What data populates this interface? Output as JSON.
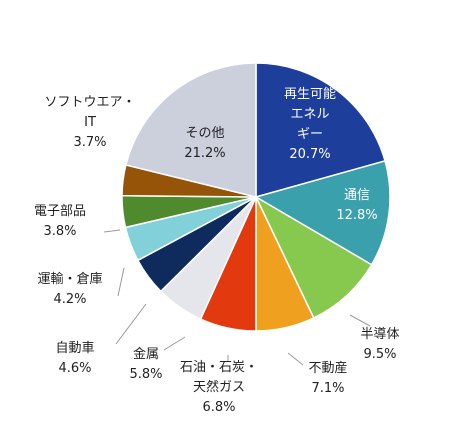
{
  "chart_data": {
    "type": "pie",
    "title": "",
    "start": "12 o'clock",
    "direction": "clockwise",
    "slices": [
      {
        "label": [
          "再生可能",
          "エネル",
          "ギー"
        ],
        "value": 20.7,
        "text": "20.7%",
        "color": "#1e3e9c",
        "label_style": "inside-light"
      },
      {
        "label": [
          "通信"
        ],
        "value": 12.8,
        "text": "12.8%",
        "color": "#3aa0ab",
        "label_style": "inside-light"
      },
      {
        "label": [
          "半導体"
        ],
        "value": 9.5,
        "text": "9.5%",
        "color": "#87c84f",
        "label_style": "outside"
      },
      {
        "label": [
          "不動産"
        ],
        "value": 7.1,
        "text": "7.1%",
        "color": "#f0a01f",
        "label_style": "outside"
      },
      {
        "label": [
          "石油・石炭・",
          "天然ガス"
        ],
        "value": 6.8,
        "text": "6.8%",
        "color": "#e3390f",
        "label_style": "outside"
      },
      {
        "label": [
          "金属"
        ],
        "value": 5.8,
        "text": "5.8%",
        "color": "#e4e6ec",
        "label_style": "outside"
      },
      {
        "label": [
          "自動車"
        ],
        "value": 4.6,
        "text": "4.6%",
        "color": "#0f2a5c",
        "label_style": "outside"
      },
      {
        "label": [
          "運輸・倉庫"
        ],
        "value": 4.2,
        "text": "4.2%",
        "color": "#82d0d9",
        "label_style": "outside"
      },
      {
        "label": [
          "電子部品"
        ],
        "value": 3.8,
        "text": "3.8%",
        "color": "#4f8a2c",
        "label_style": "outside"
      },
      {
        "label": [
          "ソフトウエア・",
          "IT"
        ],
        "value": 3.7,
        "text": "3.7%",
        "color": "#965409",
        "label_style": "outside"
      },
      {
        "label": [
          "その他"
        ],
        "value": 21.2,
        "text": "21.2%",
        "color": "#ccd0dc",
        "label_style": "inside-dark"
      }
    ]
  }
}
